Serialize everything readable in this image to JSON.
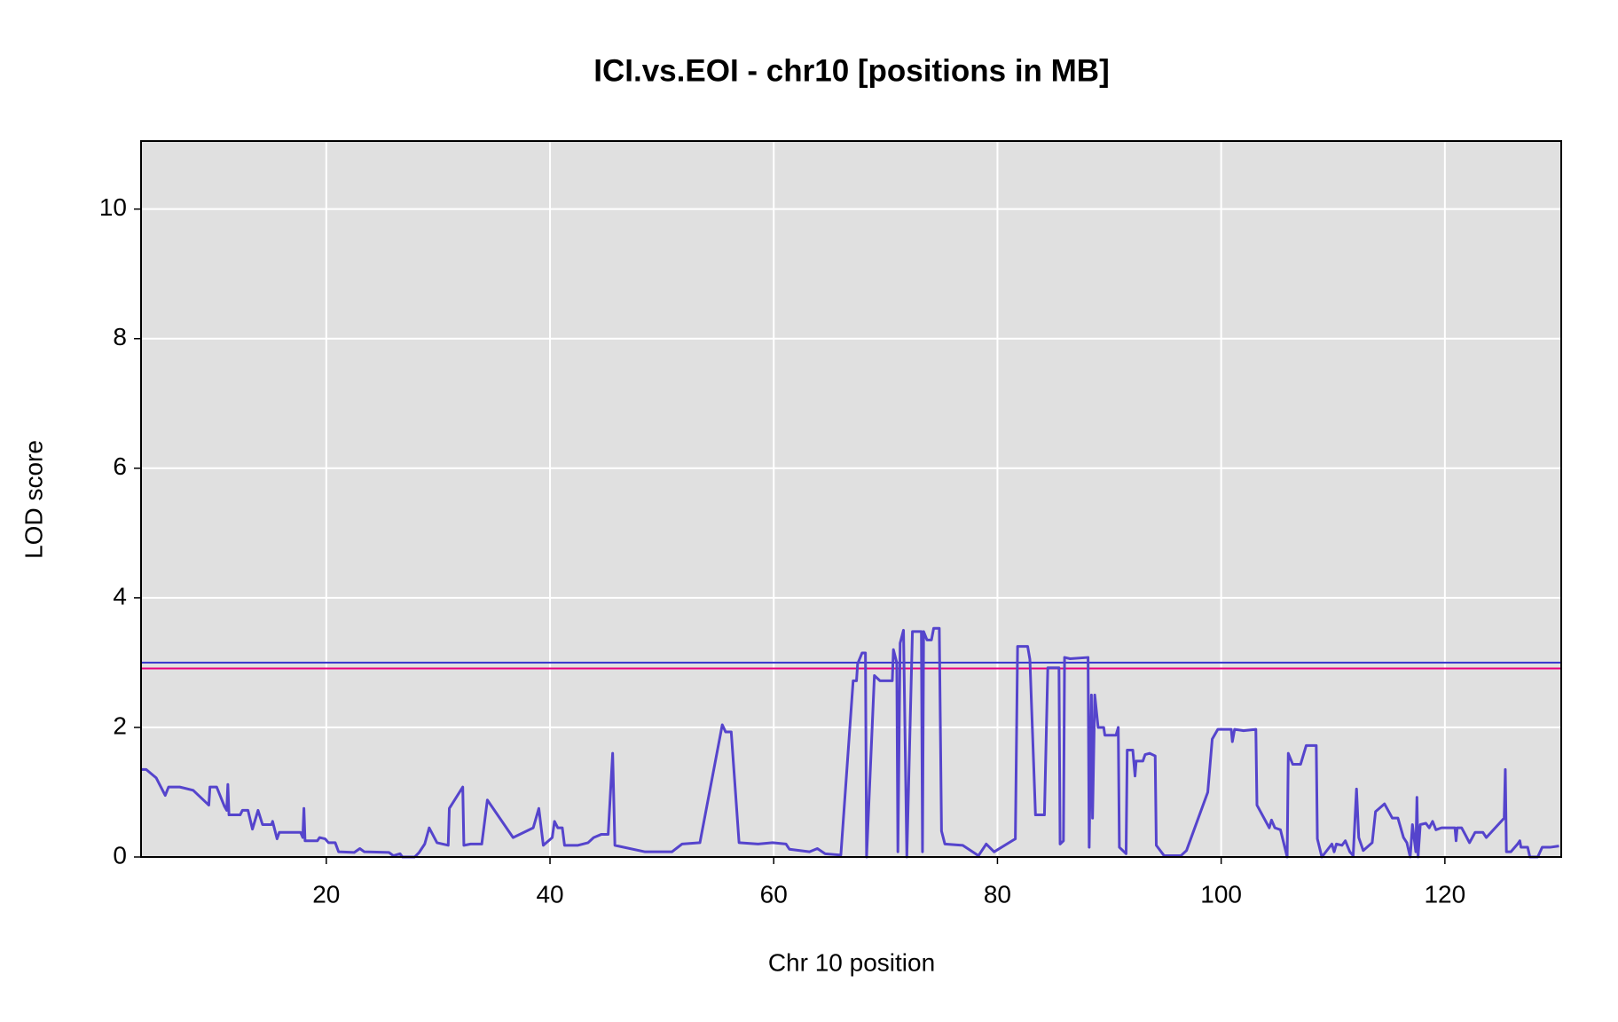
{
  "chart_data": {
    "type": "line",
    "title": "ICI.vs.EOI - chr10 [positions in MB]",
    "x_label": "Chr 10 position",
    "y_label": "LOD score",
    "color": "#5544cc",
    "x": [
      3.5,
      3.9,
      4.8,
      5.6,
      5.9,
      6.9,
      8.1,
      9.5,
      9.6,
      10.2,
      10.9,
      11.1,
      11.2,
      11.3,
      12.3,
      12.5,
      13.0,
      13.4,
      13.9,
      14.3,
      15.1,
      15.2,
      15.6,
      15.8,
      17.7,
      17.9,
      18.0,
      18.1,
      19.2,
      19.4,
      19.9,
      20.2,
      20.8,
      21.1,
      22.5,
      23.0,
      23.4,
      25.6,
      26.0,
      26.6,
      26.8,
      27.9,
      28.3,
      28.8,
      29.2,
      29.9,
      30.9,
      31.0,
      32.2,
      32.3,
      32.9,
      33.9,
      34.4,
      36.7,
      38.5,
      39.0,
      39.4,
      40.2,
      40.4,
      40.7,
      41.1,
      41.3,
      42.5,
      43.4,
      43.9,
      44.6,
      45.2,
      45.6,
      45.8,
      48.5,
      50.9,
      51.8,
      53.4,
      55.4,
      55.7,
      56.2,
      56.9,
      58.6,
      59.9,
      61.1,
      61.4,
      63.2,
      63.9,
      64.6,
      66.0,
      67.1,
      67.4,
      67.5,
      67.9,
      68.2,
      68.3,
      69.0,
      69.5,
      70.6,
      70.7,
      71.0,
      71.1,
      71.3,
      71.6,
      71.9,
      72.4,
      73.2,
      73.3,
      73.4,
      73.7,
      74.1,
      74.3,
      74.8,
      75.0,
      75.3,
      76.9,
      78.3,
      79.0,
      79.7,
      81.6,
      81.8,
      82.7,
      82.9,
      83.4,
      84.2,
      84.5,
      85.5,
      85.6,
      85.9,
      86.0,
      86.5,
      88.1,
      88.2,
      88.4,
      88.5,
      88.7,
      89.0,
      89.5,
      89.6,
      90.6,
      90.8,
      90.9,
      91.5,
      91.6,
      92.1,
      92.3,
      92.4,
      93.0,
      93.2,
      93.6,
      94.1,
      94.2,
      94.9,
      96.4,
      96.9,
      98.8,
      99.2,
      99.7,
      100.9,
      101.0,
      101.2,
      102.0,
      103.1,
      103.2,
      104.3,
      104.5,
      104.8,
      105.3,
      105.9,
      106.0,
      106.4,
      107.1,
      107.6,
      108.5,
      108.6,
      109.0,
      109.9,
      110.1,
      110.3,
      110.8,
      111.1,
      111.5,
      111.8,
      112.1,
      112.3,
      112.7,
      113.5,
      113.8,
      114.6,
      115.3,
      115.8,
      116.3,
      116.6,
      116.9,
      117.1,
      117.4,
      117.5,
      117.6,
      117.8,
      118.3,
      118.6,
      118.9,
      119.2,
      119.7,
      120.9,
      121.0,
      121.1,
      121.5,
      122.2,
      122.7,
      123.4,
      123.7,
      125.3,
      125.4,
      125.5,
      125.9,
      126.5,
      126.7,
      126.8,
      127.4,
      127.6,
      128.3,
      128.7,
      129.4,
      130.2
    ],
    "values": [
      1.35,
      1.35,
      1.22,
      0.95,
      1.08,
      1.08,
      1.03,
      0.8,
      1.08,
      1.08,
      0.78,
      0.72,
      1.12,
      0.65,
      0.65,
      0.72,
      0.72,
      0.43,
      0.72,
      0.5,
      0.5,
      0.55,
      0.28,
      0.38,
      0.38,
      0.3,
      0.75,
      0.25,
      0.25,
      0.3,
      0.28,
      0.22,
      0.22,
      0.08,
      0.07,
      0.13,
      0.08,
      0.07,
      0.02,
      0.05,
      0,
      0,
      0.07,
      0.2,
      0.45,
      0.22,
      0.18,
      0.75,
      1.08,
      0.18,
      0.2,
      0.2,
      0.88,
      0.3,
      0.45,
      0.75,
      0.18,
      0.3,
      0.55,
      0.45,
      0.45,
      0.18,
      0.18,
      0.22,
      0.3,
      0.35,
      0.35,
      1.6,
      0.18,
      0.08,
      0.08,
      0.2,
      0.22,
      2.04,
      1.93,
      1.93,
      0.22,
      0.2,
      0.22,
      0.2,
      0.12,
      0.08,
      0.13,
      0.05,
      0.03,
      2.72,
      2.72,
      2.98,
      3.15,
      3.15,
      0,
      2.8,
      2.72,
      2.72,
      3.2,
      3.0,
      0.08,
      3.3,
      3.5,
      0,
      3.48,
      3.48,
      0.08,
      3.48,
      3.35,
      3.35,
      3.53,
      3.53,
      0.4,
      0.2,
      0.18,
      0.02,
      0.2,
      0.08,
      0.28,
      3.25,
      3.25,
      3.05,
      0.65,
      0.65,
      2.92,
      2.92,
      0.2,
      0.25,
      3.08,
      3.06,
      3.08,
      0.15,
      2.5,
      0.6,
      2.5,
      2.0,
      2.0,
      1.88,
      1.88,
      2.0,
      0.15,
      0.05,
      1.65,
      1.65,
      1.25,
      1.48,
      1.48,
      1.58,
      1.6,
      1.56,
      0.18,
      0.02,
      0.02,
      0.1,
      1.0,
      1.82,
      1.97,
      1.97,
      1.78,
      1.97,
      1.95,
      1.97,
      0.8,
      0.45,
      0.57,
      0.45,
      0.42,
      0,
      1.6,
      1.43,
      1.43,
      1.72,
      1.72,
      0.28,
      0,
      0.2,
      0.08,
      0.2,
      0.18,
      0.25,
      0.08,
      0.02,
      1.05,
      0.3,
      0.1,
      0.22,
      0.7,
      0.82,
      0.6,
      0.6,
      0.3,
      0.22,
      0,
      0.5,
      0.08,
      0.92,
      0,
      0.5,
      0.52,
      0.45,
      0.55,
      0.42,
      0.45,
      0.45,
      0.25,
      0.45,
      0.45,
      0.22,
      0.38,
      0.38,
      0.3,
      0.6,
      1.35,
      0.08,
      0.08,
      0.2,
      0.25,
      0.15,
      0.15,
      0,
      0,
      0.15,
      0.15,
      0.17
    ],
    "thresholds": [
      {
        "value": 3.0,
        "color": "#3333cc"
      },
      {
        "value": 2.91,
        "color": "#e6007e"
      }
    ],
    "xlim": [
      3.44,
      130.4
    ],
    "ylim": [
      0,
      11.05
    ],
    "xticks": [
      20,
      40,
      60,
      80,
      100,
      120
    ],
    "yticks": [
      0,
      2,
      4,
      6,
      8,
      10
    ],
    "grid": true,
    "background": "#e0e0e0"
  }
}
